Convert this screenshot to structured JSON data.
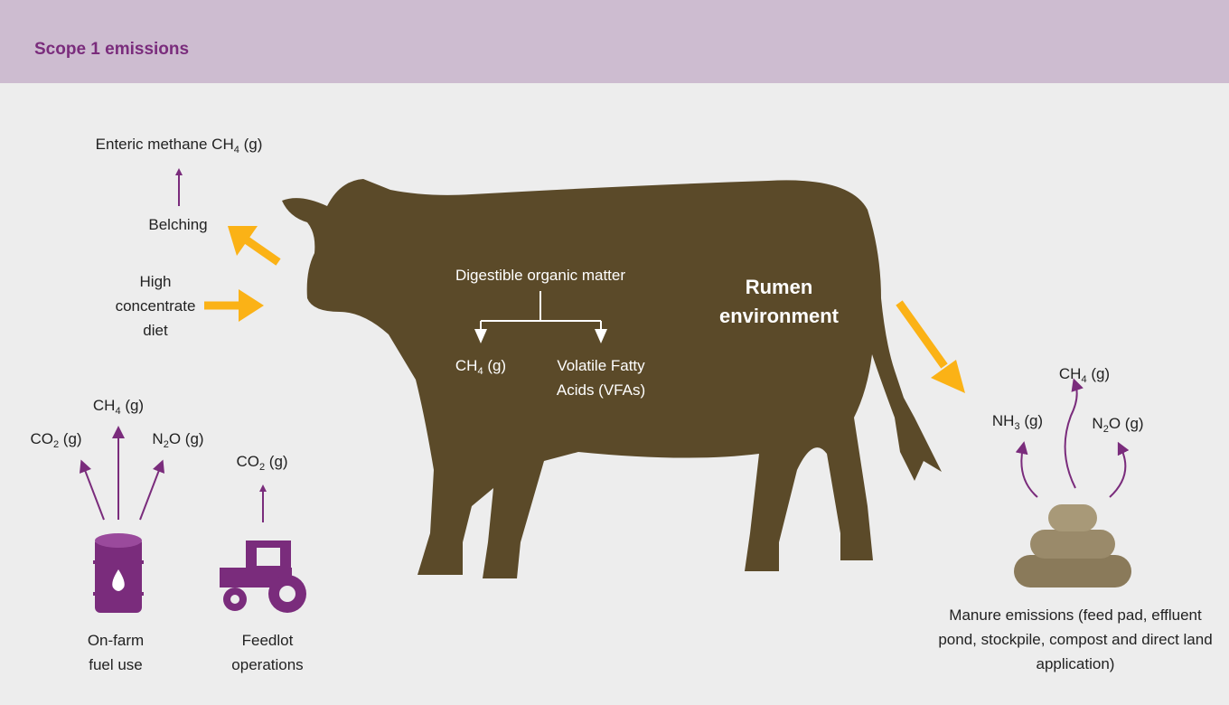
{
  "header": {
    "title": "Scope 1 emissions"
  },
  "enteric": {
    "pre": "Enteric methane CH",
    "sub": "4",
    "post": " (g)"
  },
  "belching": "Belching",
  "diet": "High concentrate diet",
  "rumen": {
    "digestible": "Digestible organic matter",
    "ch4": {
      "pre": "CH",
      "sub": "4",
      "post": " (g)"
    },
    "vfa": "Volatile Fatty Acids (VFAs)",
    "title": "Rumen environment"
  },
  "fuel": {
    "gases": [
      {
        "pre": "CO",
        "sub": "2",
        "post": " (g)"
      },
      {
        "pre": "CH",
        "sub": "4",
        "post": " (g)"
      },
      {
        "pre": "N",
        "sub": "2",
        "post": "O (g)"
      }
    ],
    "label": "On-farm fuel use"
  },
  "feedlot": {
    "gas": {
      "pre": "CO",
      "sub": "2",
      "post": " (g)"
    },
    "label": "Feedlot operations"
  },
  "manure": {
    "gases": [
      {
        "pre": "CH",
        "sub": "4",
        "post": " (g)"
      },
      {
        "pre": "NH",
        "sub": "3",
        "post": " (g)"
      },
      {
        "pre": "N",
        "sub": "2",
        "post": "O (g)"
      }
    ],
    "label": "Manure emissions (feed pad, effluent pond, stockpile, compost and direct land application)"
  }
}
